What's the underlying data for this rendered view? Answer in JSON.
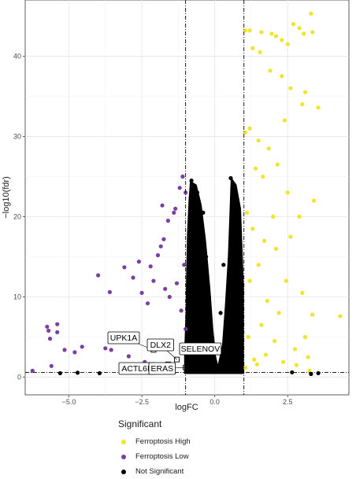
{
  "chart_data": {
    "type": "scatter",
    "title": "",
    "xlabel": "logFC",
    "ylabel": "−log10(fdr)",
    "xlim": [
      -6.5,
      4.6
    ],
    "ylim": [
      -2.2,
      47
    ],
    "xticks": [
      -5.0,
      -2.5,
      0.0,
      2.5
    ],
    "xtick_labels": [
      "−5.0",
      "−2.5",
      "0.0",
      "2.5"
    ],
    "yticks": [
      0,
      10,
      20,
      30,
      40
    ],
    "ytick_labels": [
      "0",
      "10",
      "20",
      "30",
      "40"
    ],
    "grid": true,
    "thresholds": {
      "logFC": [
        -1,
        1
      ],
      "neg_log10_fdr": 0.6
    },
    "legend_position": "bottom",
    "legend": {
      "title": "Significant",
      "entries": [
        "Ferroptosis High",
        "Ferroptosis Low",
        "Not Significant"
      ]
    },
    "colors": {
      "Ferroptosis High": "#f2e42c",
      "Ferroptosis Low": "#7b3ea3",
      "Not Significant": "#000000"
    },
    "series": [
      {
        "name": "Ferroptosis High",
        "points": [
          [
            1.05,
            43.2
          ],
          [
            1.2,
            43.2
          ],
          [
            1.6,
            43
          ],
          [
            1.95,
            42.8
          ],
          [
            2.1,
            42.5
          ],
          [
            2.3,
            42
          ],
          [
            2.5,
            41.5
          ],
          [
            2.7,
            44
          ],
          [
            2.9,
            43.5
          ],
          [
            3.05,
            42.8
          ],
          [
            3.3,
            45.3
          ],
          [
            3.35,
            43
          ],
          [
            1.3,
            41
          ],
          [
            1.55,
            40.5
          ],
          [
            1.9,
            38.2
          ],
          [
            2.3,
            37.5
          ],
          [
            2.6,
            36
          ],
          [
            3.1,
            35.5
          ],
          [
            3.0,
            34
          ],
          [
            3.55,
            33.6
          ],
          [
            2.4,
            32
          ],
          [
            1.2,
            31
          ],
          [
            1.05,
            30.5
          ],
          [
            1.5,
            29.5
          ],
          [
            1.85,
            28.5
          ],
          [
            2.15,
            26.5
          ],
          [
            1.4,
            26
          ],
          [
            1.65,
            25
          ],
          [
            2.5,
            23
          ],
          [
            3.4,
            22
          ],
          [
            2.9,
            20
          ],
          [
            1.1,
            20.5
          ],
          [
            2.0,
            20
          ],
          [
            1.3,
            18.5
          ],
          [
            1.7,
            17
          ],
          [
            2.1,
            16
          ],
          [
            2.6,
            17.5
          ],
          [
            1.5,
            14
          ],
          [
            2.45,
            12
          ],
          [
            3.0,
            10.5
          ],
          [
            1.2,
            12
          ],
          [
            1.8,
            9.5
          ],
          [
            2.2,
            8
          ],
          [
            3.1,
            5
          ],
          [
            3.35,
            7.8
          ],
          [
            4.3,
            7.6
          ],
          [
            1.15,
            5
          ],
          [
            1.6,
            6.5
          ],
          [
            2.05,
            4.5
          ],
          [
            2.75,
            3.5
          ],
          [
            1.35,
            2.2
          ],
          [
            1.75,
            2.8
          ],
          [
            3.2,
            2.5
          ],
          [
            3.25,
            0.8
          ],
          [
            1.05,
            1.2
          ],
          [
            1.45,
            1.6
          ],
          [
            2.35,
            1.9
          ],
          [
            2.8,
            1.5
          ]
        ]
      },
      {
        "name": "Ferroptosis Low",
        "points": [
          [
            -6.25,
            0.8
          ],
          [
            -5.6,
            1.4
          ],
          [
            -5.15,
            3.4
          ],
          [
            -4.8,
            3.1
          ],
          [
            -4.55,
            3.8
          ],
          [
            -3.75,
            3.6
          ],
          [
            -3.55,
            3.4
          ],
          [
            -3.3,
            4.5
          ],
          [
            -2.95,
            2.6
          ],
          [
            -2.75,
            1.3
          ],
          [
            -2.4,
            1.9
          ],
          [
            -2.05,
            1.5
          ],
          [
            -2.5,
            10.5
          ],
          [
            -2.3,
            9.2
          ],
          [
            -2.8,
            12.4
          ],
          [
            -2.2,
            13.8
          ],
          [
            -3.1,
            13.7
          ],
          [
            -2.6,
            14.4
          ],
          [
            -4.0,
            12.7
          ],
          [
            -3.6,
            10.6
          ],
          [
            -5.4,
            6.6
          ],
          [
            -5.75,
            6.3
          ],
          [
            -5.7,
            5.8
          ],
          [
            -5.65,
            4.8
          ],
          [
            -5.4,
            5.6
          ],
          [
            -1.95,
            15.2
          ],
          [
            -1.85,
            16.3
          ],
          [
            -1.75,
            17.2
          ],
          [
            -1.6,
            19.5
          ],
          [
            -1.4,
            20.5
          ],
          [
            -1.35,
            21
          ],
          [
            -1.2,
            23.6
          ],
          [
            -1.1,
            25
          ],
          [
            -1.8,
            21.4
          ],
          [
            -1.0,
            23
          ],
          [
            -2.1,
            12
          ],
          [
            -1.7,
            11
          ],
          [
            -1.55,
            10
          ],
          [
            -1.3,
            11.7
          ],
          [
            -1.15,
            8.3
          ],
          [
            -1.05,
            14
          ],
          [
            -1.0,
            6
          ]
        ]
      },
      {
        "name": "Not Significant",
        "points": [
          [
            -0.8,
            24.5
          ],
          [
            -0.6,
            23
          ],
          [
            -0.7,
            22.3
          ],
          [
            -0.55,
            21.5
          ],
          [
            -0.4,
            20.5
          ],
          [
            0.55,
            24.8
          ],
          [
            0.6,
            23.5
          ],
          [
            0.75,
            22
          ],
          [
            0.7,
            21
          ],
          [
            -0.3,
            15
          ],
          [
            0.3,
            14
          ],
          [
            -0.2,
            10
          ],
          [
            0.2,
            8
          ],
          [
            -0.1,
            5
          ],
          [
            0.1,
            3
          ],
          [
            0,
            1
          ],
          [
            2.65,
            0.6
          ],
          [
            3.3,
            0.4
          ],
          [
            3.55,
            0.5
          ],
          [
            -5.3,
            0.5
          ],
          [
            -4.7,
            0.55
          ],
          [
            -3.95,
            0.5
          ],
          [
            -2.0,
            0.6
          ]
        ]
      }
    ],
    "gene_labels": [
      {
        "text": "UPK1A",
        "x": -2.1,
        "y": 3.4
      },
      {
        "text": "DLX2",
        "x": -1.3,
        "y": 2.2
      },
      {
        "text": "SELENOV",
        "x": -0.65,
        "y": 1.8
      },
      {
        "text": "ACTL6B",
        "x": -1.6,
        "y": 1.6
      },
      {
        "text": "ERAS",
        "x": -1.0,
        "y": 1.2
      }
    ]
  }
}
